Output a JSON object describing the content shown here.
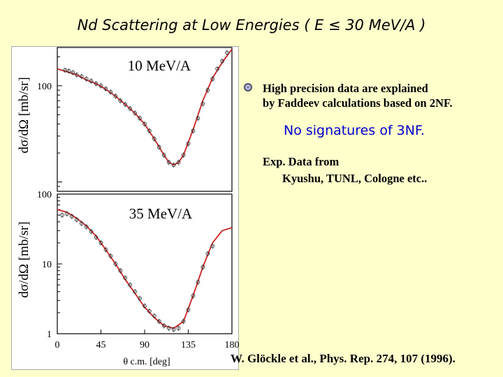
{
  "slide": {
    "title": "Nd Scattering  at Low Energies ( E ≤ 30 MeV/A )",
    "bullet_icon": "target-bullet-icon",
    "bullet_line1": "High precision data are explained",
    "bullet_line2": "by Faddeev calculations based on 2NF.",
    "highlight": "No signatures of 3NF.",
    "exp_line1": "Exp. Data from",
    "exp_line2": "Kyushu, TUNL, Cologne etc..",
    "citation": "W. Glöckle et al., Phys. Rep. 274, 107 (1996).",
    "colors": {
      "background": "#FFFFCC",
      "highlight": "#0000CC",
      "curve": "#CC2222"
    }
  },
  "chart_data": [
    {
      "type": "line",
      "title": "10 MeV/A",
      "ylabel": "dσ/dΩ [mb/sr]",
      "yscale": "log",
      "xlim": [
        0,
        180
      ],
      "ylim": [
        8,
        250
      ],
      "yticks": [
        {
          "value": 100,
          "label": "100"
        }
      ],
      "series": [
        {
          "name": "Faddeev calculation (2NF)",
          "x": [
            0,
            10,
            20,
            30,
            40,
            50,
            60,
            70,
            80,
            90,
            100,
            110,
            115,
            120,
            125,
            130,
            140,
            150,
            160,
            170,
            180
          ],
          "y": [
            150,
            140,
            130,
            115,
            105,
            92,
            78,
            64,
            52,
            40,
            28,
            19,
            16,
            15,
            16,
            19,
            35,
            70,
            120,
            175,
            240
          ]
        },
        {
          "name": "Exp. data",
          "x": [
            8,
            12,
            16,
            20,
            25,
            30,
            35,
            40,
            45,
            50,
            55,
            60,
            65,
            70,
            75,
            80,
            85,
            90,
            95,
            100,
            105,
            110,
            115,
            120,
            125,
            130,
            135,
            140,
            145,
            150,
            155,
            160,
            165,
            170,
            175
          ],
          "y": [
            145,
            142,
            137,
            130,
            125,
            118,
            112,
            105,
            100,
            93,
            86,
            78,
            70,
            64,
            58,
            52,
            46,
            40,
            34,
            28,
            23,
            19,
            16,
            15,
            16,
            19,
            25,
            34,
            46,
            65,
            90,
            118,
            150,
            180,
            220
          ]
        }
      ]
    },
    {
      "type": "line",
      "title": "35 MeV/A",
      "xlabel": "θ c.m. [deg]",
      "ylabel": "dσ/dΩ [mb/sr]",
      "yscale": "log",
      "xlim": [
        0,
        180
      ],
      "ylim": [
        1,
        100
      ],
      "xticks": [
        0,
        45,
        90,
        135,
        180
      ],
      "yticks": [
        {
          "value": 1,
          "label": "1"
        },
        {
          "value": 10,
          "label": "10"
        },
        {
          "value": 100,
          "label": "100"
        }
      ],
      "series": [
        {
          "name": "Faddeev calculation (2NF)",
          "x": [
            0,
            10,
            20,
            30,
            40,
            50,
            60,
            70,
            80,
            90,
            100,
            110,
            120,
            130,
            140,
            150,
            160,
            170,
            180
          ],
          "y": [
            60,
            55,
            45,
            35,
            25,
            16,
            10,
            6,
            3.8,
            2.4,
            1.7,
            1.3,
            1.2,
            1.5,
            3.5,
            9,
            20,
            30,
            33
          ]
        },
        {
          "name": "Exp. data",
          "x": [
            5,
            10,
            15,
            20,
            25,
            30,
            35,
            40,
            45,
            50,
            55,
            60,
            65,
            70,
            75,
            80,
            85,
            90,
            95,
            100,
            105,
            110,
            115,
            120,
            125,
            130,
            135,
            140,
            145,
            150,
            155,
            160
          ],
          "y": [
            50,
            52,
            48,
            43,
            38,
            34,
            29,
            24,
            20,
            16,
            13,
            10,
            8,
            6.3,
            5,
            4,
            3.2,
            2.5,
            2.1,
            1.8,
            1.5,
            1.3,
            1.2,
            1.15,
            1.2,
            1.5,
            2.2,
            3.5,
            5.5,
            9,
            14,
            18
          ]
        }
      ]
    }
  ]
}
